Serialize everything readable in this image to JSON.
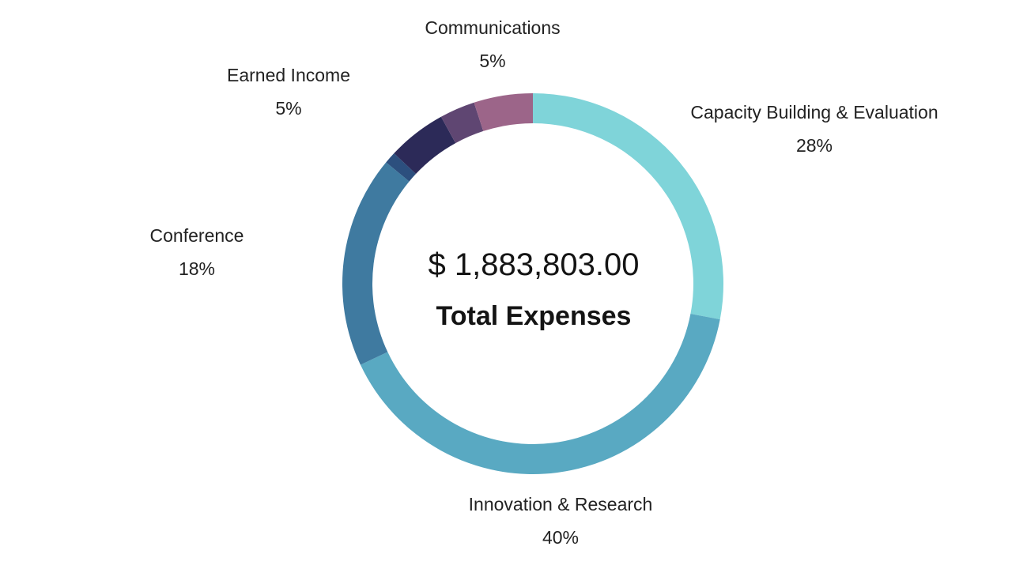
{
  "chart_data": {
    "type": "pie",
    "variant": "donut",
    "center": {
      "total": "$ 1,883,803.00",
      "caption": "Total Expenses"
    },
    "slices": [
      {
        "label": "Capacity Building & Evaluation",
        "percent_label": "28%",
        "value": 28,
        "color": "#7fd4d9"
      },
      {
        "label": "Innovation & Research",
        "percent_label": "40%",
        "value": 40,
        "color": "#59a9c2"
      },
      {
        "label": "Conference",
        "percent_label": "18%",
        "value": 18,
        "color": "#3f7aa0"
      },
      {
        "label": "",
        "percent_label": "",
        "value": 1,
        "color": "#2c4f7e"
      },
      {
        "label": "Earned Income",
        "percent_label": "5%",
        "value": 5,
        "color": "#2c2a58"
      },
      {
        "label": "",
        "percent_label": "",
        "value": 3,
        "color": "#5f4672"
      },
      {
        "label": "Communications",
        "percent_label": "5%",
        "value": 5,
        "color": "#9c6589"
      }
    ]
  }
}
